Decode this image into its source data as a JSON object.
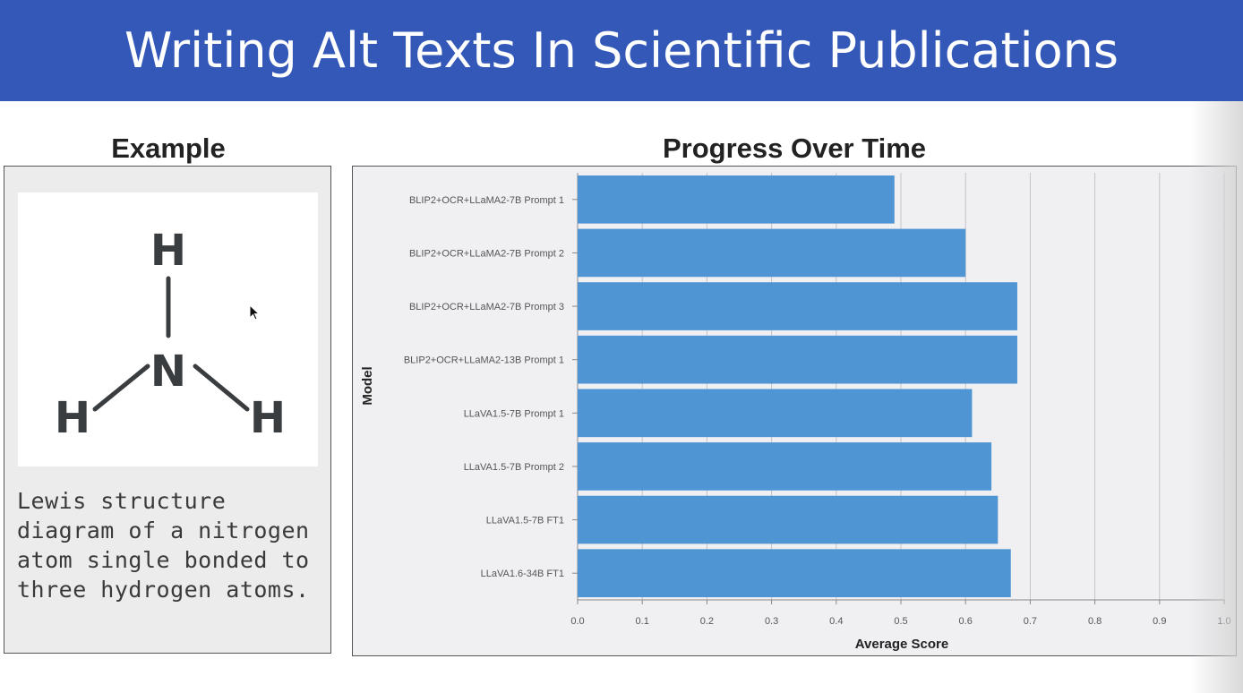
{
  "header": {
    "title": "Writing Alt Texts In Scientific Publications"
  },
  "example": {
    "heading": "Example",
    "atoms": {
      "center": "N",
      "top": "H",
      "left": "H",
      "right": "H"
    },
    "caption": "Lewis structure\ndiagram of a nitrogen\natom single bonded to\nthree hydrogen atoms."
  },
  "chart_heading": "Progress Over Time",
  "colors": {
    "header_bg": "#3358b8",
    "bar": "#4f95d4",
    "chart_bg": "#f0f0f3"
  },
  "chart_data": {
    "type": "bar",
    "orientation": "horizontal",
    "categories": [
      "BLIP2+OCR+LLaMA2-7B Prompt 1",
      "BLIP2+OCR+LLaMA2-7B Prompt 2",
      "BLIP2+OCR+LLaMA2-7B Prompt 3",
      "BLIP2+OCR+LLaMA2-13B Prompt 1",
      "LLaVA1.5-7B Prompt 1",
      "LLaVA1.5-7B Prompt 2",
      "LLaVA1.5-7B FT1",
      "LLaVA1.6-34B FT1"
    ],
    "values": [
      0.49,
      0.6,
      0.68,
      0.68,
      0.61,
      0.64,
      0.65,
      0.67
    ],
    "xlabel": "Average Score",
    "ylabel": "Model",
    "xlim": [
      0,
      1
    ],
    "xticks": [
      "0.0",
      "0.1",
      "0.2",
      "0.3",
      "0.4",
      "0.5",
      "0.6",
      "0.7",
      "0.8",
      "0.9",
      "1.0"
    ],
    "grid": true
  }
}
